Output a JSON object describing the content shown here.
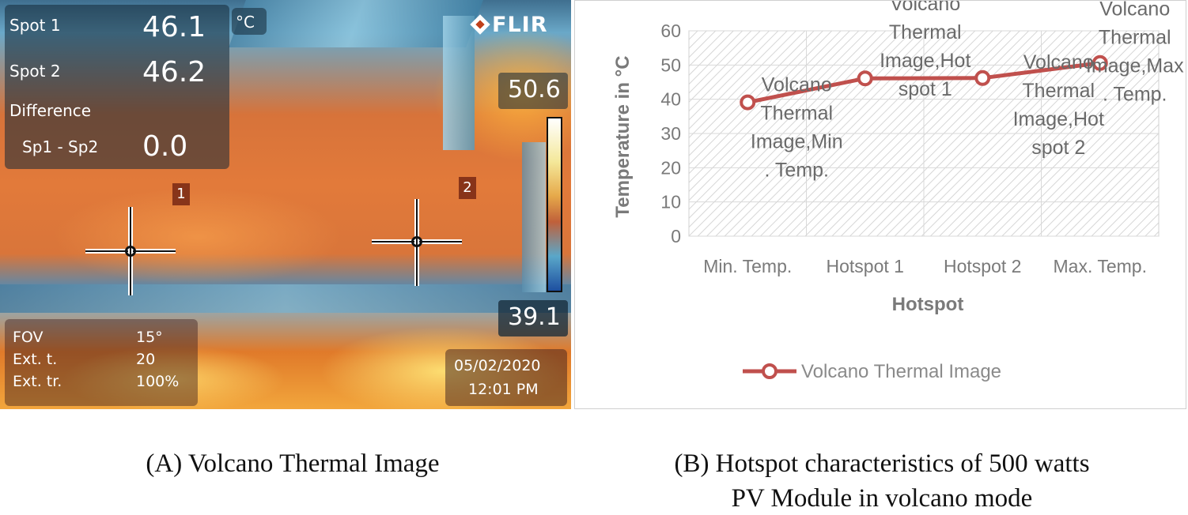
{
  "thermal": {
    "caption": "(A) Volcano Thermal Image",
    "brand": "FLIR",
    "unit": "°C",
    "spot1_label": "Spot 1",
    "spot1_value": "46.1",
    "spot2_label": "Spot 2",
    "spot2_value": "46.2",
    "difference_label": "Difference",
    "diff_label": "Sp1 - Sp2",
    "diff_value": "0.0",
    "scale_max": "50.6",
    "scale_min": "39.1",
    "marker1": "1",
    "marker2": "2",
    "fov_label": "FOV",
    "fov_value": "15°",
    "ext_t_label": "Ext. t.",
    "ext_t_value": "20",
    "ext_tr_label": "Ext. tr.",
    "ext_tr_value": "100%",
    "date": "05/02/2020",
    "time": "12:01 PM",
    "colors": {
      "hot": "#e27a3a",
      "cool": "#5f88a8"
    }
  },
  "chart": {
    "caption_line1": "(B) Hotspot characteristics of 500 watts",
    "caption_line2": "PV Module in volcano mode"
  },
  "chart_data": {
    "type": "line",
    "title": "",
    "xlabel": "Hotspot",
    "ylabel": "Temperature in °C",
    "categories": [
      "Min. Temp.",
      "Hotspot 1",
      "Hotspot 2",
      "Max. Temp."
    ],
    "ylim": [
      0,
      60
    ],
    "yticks": [
      0,
      10,
      20,
      30,
      40,
      50,
      60
    ],
    "grid": true,
    "legend": "bottom",
    "series": [
      {
        "name": "Volcano Thermal Image",
        "values": [
          39.1,
          46.1,
          46.2,
          50.6
        ],
        "color": "#c0504d",
        "data_labels": [
          [
            "Volcano",
            "Thermal",
            "Image,Min",
            ". Temp."
          ],
          [
            "Volcano",
            "Thermal",
            "Image,Hot",
            "spot 1"
          ],
          [
            "Volcano",
            "Thermal",
            "Image,Hot",
            "spot 2"
          ],
          [
            "Volcano",
            "Thermal",
            "Image,Max",
            ". Temp."
          ]
        ]
      }
    ]
  }
}
